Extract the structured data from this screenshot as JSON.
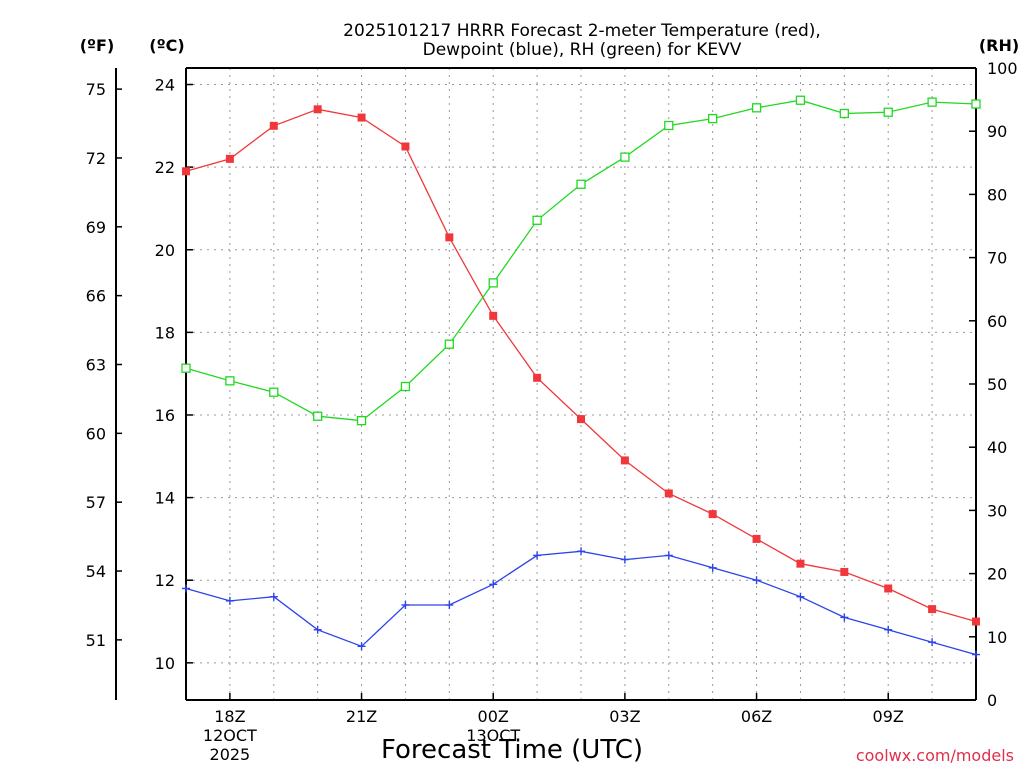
{
  "title_line1": "2025101217 HRRR Forecast 2-meter Temperature (red),",
  "title_line2": "Dewpoint (blue), RH (green) for KEVV",
  "xlabel": "Forecast Time (UTC)",
  "credit": "coolwx.com/models",
  "unit_f": "(ºF)",
  "unit_c": "(ºC)",
  "unit_rh": "(RH)",
  "colors": {
    "temp": "#f0383c",
    "dewpoint": "#2c44e8",
    "rh": "#22d822",
    "grid": "#999999"
  },
  "chart_data": {
    "type": "line",
    "title": "2025101217 HRRR Forecast 2-meter Temperature (red), Dewpoint (blue), RH (green) for KEVV",
    "xlabel": "Forecast Time (UTC)",
    "x_hours": [
      17,
      18,
      19,
      20,
      21,
      22,
      23,
      24,
      25,
      26,
      27,
      28,
      29,
      30,
      31,
      32,
      33,
      34,
      35
    ],
    "x_ticks": [
      {
        "hour": 18,
        "label": "18Z",
        "sub1": "12OCT",
        "sub2": "2025"
      },
      {
        "hour": 21,
        "label": "21Z",
        "sub1": "",
        "sub2": ""
      },
      {
        "hour": 24,
        "label": "00Z",
        "sub1": "13OCT",
        "sub2": ""
      },
      {
        "hour": 27,
        "label": "03Z",
        "sub1": "",
        "sub2": ""
      },
      {
        "hour": 30,
        "label": "06Z",
        "sub1": "",
        "sub2": ""
      },
      {
        "hour": 33,
        "label": "09Z",
        "sub1": "",
        "sub2": ""
      }
    ],
    "xlim": [
      17,
      35
    ],
    "celsius_axis": {
      "ylim": [
        9.1,
        24.4
      ],
      "ticks": [
        10,
        12,
        14,
        16,
        18,
        20,
        22,
        24
      ]
    },
    "fahrenheit_axis": {
      "ticks": [
        51,
        54,
        57,
        60,
        63,
        66,
        69,
        72,
        75
      ]
    },
    "rh_axis": {
      "ylim": [
        0,
        100
      ],
      "ticks": [
        0,
        10,
        20,
        30,
        40,
        50,
        60,
        70,
        80,
        90,
        100
      ]
    },
    "series": [
      {
        "name": "Temperature (°C)",
        "axis": "celsius",
        "marker": "filled-square",
        "values": [
          21.9,
          22.2,
          23.0,
          23.4,
          23.2,
          22.5,
          20.3,
          18.4,
          16.9,
          15.9,
          14.9,
          14.1,
          13.6,
          13.0,
          12.4,
          12.2,
          11.8,
          11.3,
          11.0
        ]
      },
      {
        "name": "Dewpoint (°C)",
        "axis": "celsius",
        "marker": "plus",
        "values": [
          11.8,
          11.5,
          11.6,
          10.8,
          10.4,
          11.4,
          11.4,
          11.9,
          12.6,
          12.7,
          12.5,
          12.6,
          12.3,
          12.0,
          11.6,
          11.1,
          10.8,
          10.5,
          10.2
        ]
      },
      {
        "name": "RH (%)",
        "axis": "rh",
        "marker": "open-square",
        "values": [
          52.5,
          50.5,
          48.7,
          44.9,
          44.2,
          49.6,
          56.3,
          66.0,
          75.9,
          81.6,
          85.9,
          90.9,
          92.0,
          93.7,
          94.9,
          92.8,
          93.0,
          94.6,
          94.3
        ]
      }
    ]
  }
}
